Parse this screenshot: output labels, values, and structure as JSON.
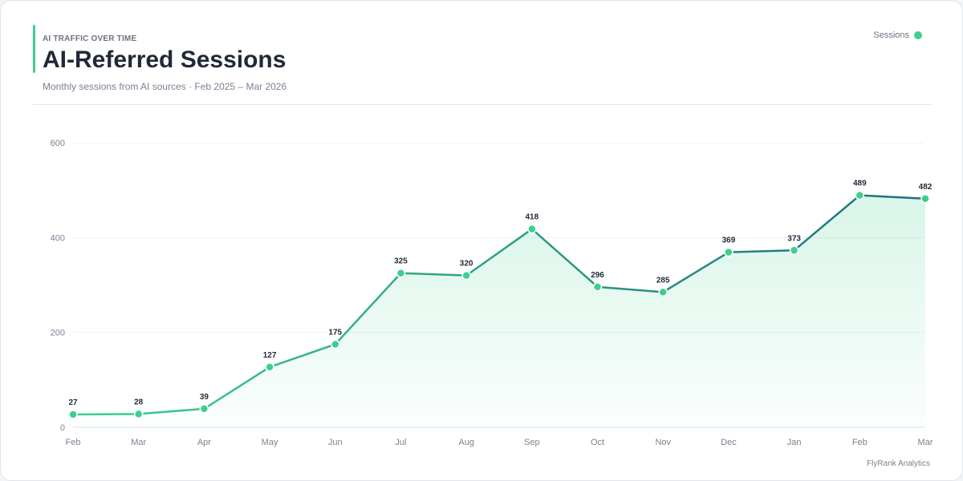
{
  "header": {
    "eyebrow": "AI TRAFFIC OVER TIME",
    "title": "AI-Referred Sessions",
    "subtitle": "Monthly sessions from AI sources · Feb 2025 – Mar 2026"
  },
  "legend": {
    "label": "Sessions"
  },
  "footer": {
    "brand": "FlyRank Analytics"
  },
  "colors": {
    "line_start": "#3ecf8e",
    "line_end": "#1f6e7a",
    "point": "#3ecf8e",
    "area": "#3ecf8e",
    "grid": "#eef0f3",
    "axis_text": "#7a8190",
    "label_text": "#1f2937"
  },
  "chart_data": {
    "type": "line",
    "categories": [
      "Feb",
      "Mar",
      "Apr",
      "May",
      "Jun",
      "Jul",
      "Aug",
      "Sep",
      "Oct",
      "Nov",
      "Dec",
      "Jan",
      "Feb",
      "Mar"
    ],
    "series": [
      {
        "name": "Sessions",
        "values": [
          27,
          28,
          39,
          127,
          175,
          325,
          320,
          418,
          296,
          285,
          369,
          373,
          489,
          482
        ]
      }
    ],
    "xlabel": "",
    "ylabel": "",
    "ylim": [
      0,
      600
    ],
    "yticks": [
      0,
      200,
      400,
      600
    ],
    "grid": true,
    "legend_position": "top-right",
    "area_fill": true,
    "data_labels": true
  }
}
